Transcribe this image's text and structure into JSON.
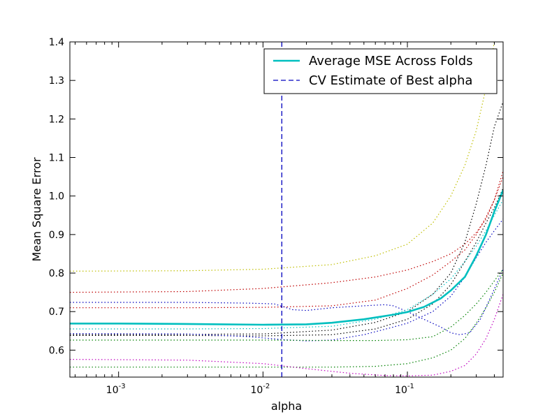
{
  "chart_data": {
    "type": "line",
    "title": "",
    "xlabel": "alpha",
    "ylabel": "Mean Square Error",
    "x_scale": "log",
    "xlim": [
      0.00046,
      0.46
    ],
    "ylim": [
      0.53,
      1.4
    ],
    "x_ticks": [
      {
        "value": 0.001,
        "base": "10",
        "exp": "-3"
      },
      {
        "value": 0.01,
        "base": "10",
        "exp": "-2"
      },
      {
        "value": 0.1,
        "base": "10",
        "exp": "-1"
      }
    ],
    "y_ticks": [
      {
        "value": 0.6,
        "label": "0.6"
      },
      {
        "value": 0.7,
        "label": "0.7"
      },
      {
        "value": 0.8,
        "label": "0.8"
      },
      {
        "value": 0.9,
        "label": "0.9"
      },
      {
        "value": 1.0,
        "label": "1.0"
      },
      {
        "value": 1.1,
        "label": "1.1"
      },
      {
        "value": 1.2,
        "label": "1.2"
      },
      {
        "value": 1.3,
        "label": "1.3"
      },
      {
        "value": 1.4,
        "label": "1.4"
      }
    ],
    "grid": false,
    "legend_position": "top-right",
    "best_alpha": 0.0135,
    "average_series": {
      "name": "Average MSE Across Folds",
      "color": "#00bfbf",
      "x": [
        0.00046,
        0.001,
        0.003,
        0.01,
        0.02,
        0.03,
        0.05,
        0.08,
        0.1,
        0.13,
        0.17,
        0.2,
        0.25,
        0.3,
        0.35,
        0.4,
        0.46
      ],
      "y": [
        0.669,
        0.669,
        0.668,
        0.666,
        0.667,
        0.671,
        0.68,
        0.692,
        0.699,
        0.712,
        0.734,
        0.755,
        0.79,
        0.845,
        0.9,
        0.96,
        1.015
      ]
    },
    "best_alpha_line": {
      "name": "CV Estimate of Best alpha",
      "color": "#0000bf"
    },
    "fold_series": [
      {
        "color": "#bfbf00",
        "x": [
          0.00046,
          0.003,
          0.01,
          0.03,
          0.06,
          0.1,
          0.15,
          0.2,
          0.25,
          0.3,
          0.35,
          0.4
        ],
        "y": [
          0.805,
          0.806,
          0.81,
          0.822,
          0.845,
          0.875,
          0.93,
          1.0,
          1.08,
          1.17,
          1.28,
          1.4
        ]
      },
      {
        "color": "#bf0000",
        "x": [
          0.00046,
          0.003,
          0.01,
          0.03,
          0.06,
          0.1,
          0.15,
          0.2,
          0.25,
          0.3,
          0.35,
          0.4,
          0.46
        ],
        "y": [
          0.75,
          0.752,
          0.76,
          0.775,
          0.79,
          0.808,
          0.83,
          0.85,
          0.875,
          0.905,
          0.94,
          0.99,
          1.065
        ]
      },
      {
        "color": "#bf0000",
        "x": [
          0.00046,
          0.003,
          0.01,
          0.03,
          0.06,
          0.1,
          0.15,
          0.2,
          0.25,
          0.3,
          0.35,
          0.4,
          0.46
        ],
        "y": [
          0.71,
          0.71,
          0.711,
          0.715,
          0.73,
          0.76,
          0.795,
          0.83,
          0.86,
          0.9,
          0.945,
          0.99,
          1.05
        ]
      },
      {
        "color": "#000000",
        "x": [
          0.00046,
          0.003,
          0.01,
          0.03,
          0.06,
          0.1,
          0.15,
          0.2,
          0.25,
          0.3,
          0.35,
          0.4,
          0.46
        ],
        "y": [
          0.64,
          0.641,
          0.642,
          0.652,
          0.672,
          0.7,
          0.745,
          0.8,
          0.88,
          0.98,
          1.08,
          1.18,
          1.245
        ]
      },
      {
        "color": "#000000",
        "x": [
          0.00046,
          0.003,
          0.01,
          0.03,
          0.06,
          0.1,
          0.15,
          0.2,
          0.25,
          0.3,
          0.35,
          0.4,
          0.46
        ],
        "y": [
          0.638,
          0.638,
          0.637,
          0.64,
          0.655,
          0.68,
          0.72,
          0.77,
          0.83,
          0.88,
          0.93,
          0.97,
          1.02
        ]
      },
      {
        "color": "#0000bf",
        "x": [
          0.00046,
          0.003,
          0.008,
          0.012,
          0.016,
          0.02,
          0.03,
          0.05,
          0.07,
          0.08,
          0.1,
          0.13,
          0.17,
          0.2,
          0.23,
          0.27,
          0.32,
          0.38,
          0.46
        ],
        "y": [
          0.724,
          0.724,
          0.722,
          0.72,
          0.705,
          0.703,
          0.71,
          0.715,
          0.718,
          0.715,
          0.7,
          0.68,
          0.66,
          0.645,
          0.64,
          0.645,
          0.68,
          0.74,
          0.81
        ]
      },
      {
        "color": "#0000bf",
        "x": [
          0.00046,
          0.003,
          0.008,
          0.014,
          0.02,
          0.03,
          0.05,
          0.08,
          0.1,
          0.15,
          0.2,
          0.25,
          0.3,
          0.35,
          0.4,
          0.46
        ],
        "y": [
          0.643,
          0.642,
          0.635,
          0.627,
          0.624,
          0.626,
          0.64,
          0.66,
          0.67,
          0.7,
          0.74,
          0.79,
          0.84,
          0.88,
          0.91,
          0.94
        ]
      },
      {
        "color": "#00bfbf",
        "x": [
          0.00046,
          0.003,
          0.01,
          0.03,
          0.06,
          0.1,
          0.15,
          0.2,
          0.25,
          0.3,
          0.35,
          0.4,
          0.46
        ],
        "y": [
          0.655,
          0.655,
          0.656,
          0.662,
          0.68,
          0.705,
          0.745,
          0.785,
          0.83,
          0.87,
          0.91,
          0.95,
          0.99
        ]
      },
      {
        "color": "#008000",
        "x": [
          0.00046,
          0.003,
          0.01,
          0.03,
          0.06,
          0.1,
          0.15,
          0.2,
          0.25,
          0.3,
          0.35,
          0.4,
          0.46
        ],
        "y": [
          0.626,
          0.626,
          0.626,
          0.625,
          0.625,
          0.627,
          0.635,
          0.66,
          0.69,
          0.72,
          0.75,
          0.78,
          0.81
        ]
      },
      {
        "color": "#008000",
        "x": [
          0.00046,
          0.003,
          0.01,
          0.03,
          0.06,
          0.1,
          0.15,
          0.2,
          0.25,
          0.3,
          0.35,
          0.4,
          0.46
        ],
        "y": [
          0.556,
          0.556,
          0.556,
          0.556,
          0.558,
          0.565,
          0.58,
          0.6,
          0.63,
          0.67,
          0.71,
          0.75,
          0.8
        ]
      },
      {
        "color": "#bf00bf",
        "x": [
          0.00046,
          0.003,
          0.01,
          0.02,
          0.04,
          0.07,
          0.1,
          0.15,
          0.2,
          0.25,
          0.3,
          0.35,
          0.4,
          0.46
        ],
        "y": [
          0.576,
          0.574,
          0.565,
          0.552,
          0.54,
          0.534,
          0.533,
          0.535,
          0.545,
          0.56,
          0.59,
          0.63,
          0.68,
          0.745
        ]
      }
    ]
  }
}
